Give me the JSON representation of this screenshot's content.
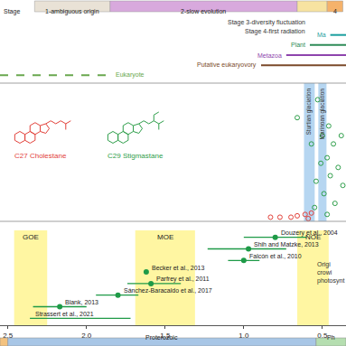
{
  "chart_data": [
    {
      "type": "timeline",
      "label": "Stage",
      "categories": [
        "1-ambiguous origin",
        "2-slow evolution",
        null,
        "4"
      ],
      "start": [
        2.33,
        1.85,
        0.66,
        0.47
      ],
      "end": [
        1.85,
        0.66,
        0.47,
        0.37
      ],
      "colors": [
        "#e9e2d6",
        "#d8a9dd",
        "#f7e3a1",
        "#f5b26b"
      ],
      "annotations": [
        "Stage 3-diversity fluctuation",
        "Stage 4-first radiation"
      ]
    },
    {
      "type": "line",
      "tick_labels": false,
      "series": [
        {
          "name": "Eukaryote",
          "color": "#6aa84f",
          "x": [
            2.55,
            1.85
          ],
          "line_style": "dashed"
        },
        {
          "name": "Putative eukaryovory",
          "color": "#7b4a2a",
          "x": [
            0.89,
            0.35
          ],
          "line_style": "solid"
        },
        {
          "name": "Metazoa",
          "color": "#8e44ad",
          "x": [
            0.73,
            0.35
          ],
          "line_style": "solid"
        },
        {
          "name": "Plant",
          "color": "#2e8b57",
          "x": [
            0.58,
            0.35
          ],
          "line_style": "solid"
        },
        {
          "name": "Ma",
          "color": "#1a9e9e",
          "x": [
            0.45,
            0.35
          ],
          "line_style": "solid"
        }
      ]
    },
    {
      "type": "scatter",
      "ylim": [
        0,
        100
      ],
      "tick_labels": false,
      "series": [
        {
          "name": "C27 Cholestane",
          "color": "#e2413a",
          "marker": "open circle",
          "x": [
            0.83,
            0.77,
            0.7,
            0.66,
            0.61,
            0.57,
            0.59
          ],
          "values": [
            3,
            3,
            3,
            4,
            5,
            6,
            2
          ]
        },
        {
          "name": "C29 Stigmastane",
          "color": "#2e9e4a",
          "marker": "open circle",
          "x": [
            0.66,
            0.57,
            0.54,
            0.53,
            0.51,
            0.5,
            0.49,
            0.47,
            0.46,
            0.45,
            0.43,
            0.42,
            0.4,
            0.38,
            0.37,
            0.55,
            0.47
          ],
          "values": [
            75,
            56,
            29,
            88,
            42,
            62,
            20,
            46,
            69,
            33,
            56,
            13,
            39,
            62,
            26,
            10,
            5
          ]
        }
      ],
      "bands": [
        {
          "name": "Sturtian glaciation",
          "start": 0.617,
          "end": 0.549,
          "color": "#a9cfee"
        },
        {
          "name": "Marinoan glaciation",
          "start": 0.526,
          "end": 0.474,
          "color": "#a9cfee"
        }
      ]
    },
    {
      "type": "scatter",
      "xlim": [
        2.55,
        0.35
      ],
      "xticks": [
        2.5,
        {
          "value": 2,
          "label": "2.0"
        },
        1.5,
        {
          "value": 1,
          "label": "1.0"
        },
        0.5
      ],
      "tick_labels": "x",
      "categories": [
        "Douzery et al., 2004",
        "Shih and Matzke, 2013",
        "Falcón et al., 2010",
        "Becker et al., 2013",
        "Parfrey et al., 2011",
        "Sánchez-Baracaldo et al., 2017",
        "Blank, 2013",
        "Strassert et al., 2021"
      ],
      "values": [
        0.8,
        0.97,
        1.0,
        1.62,
        1.59,
        1.8,
        2.17,
        null
      ],
      "lower": [
        0.6,
        0.73,
        0.9,
        null,
        1.4,
        1.67,
        2.0,
        1.72
      ],
      "upper": [
        1.0,
        1.23,
        1.1,
        null,
        1.74,
        1.94,
        2.34,
        2.36
      ],
      "color": "#1e9a47",
      "marker": "circle",
      "bands": [
        {
          "name": "GOE",
          "start": 2.46,
          "end": 2.25,
          "color": "#fff27a"
        },
        {
          "name": "MOE",
          "start": 1.69,
          "end": 1.31,
          "color": "#fff27a"
        },
        {
          "name": "NOE",
          "start": 0.66,
          "end": 0.46,
          "color": "#fff27a"
        }
      ],
      "annotations": [
        "Origi",
        "crowi",
        "photosynt"
      ],
      "eras": [
        {
          "name": null,
          "start": 2.55,
          "end": 2.5,
          "color": "#f3c27f"
        },
        {
          "name": "Proterozoic",
          "start": 2.5,
          "end": 0.54,
          "color": "#a8c6e6"
        },
        {
          "name": "Ph",
          "start": 0.54,
          "end": 0.35,
          "color": "#b5deb0"
        }
      ]
    }
  ]
}
